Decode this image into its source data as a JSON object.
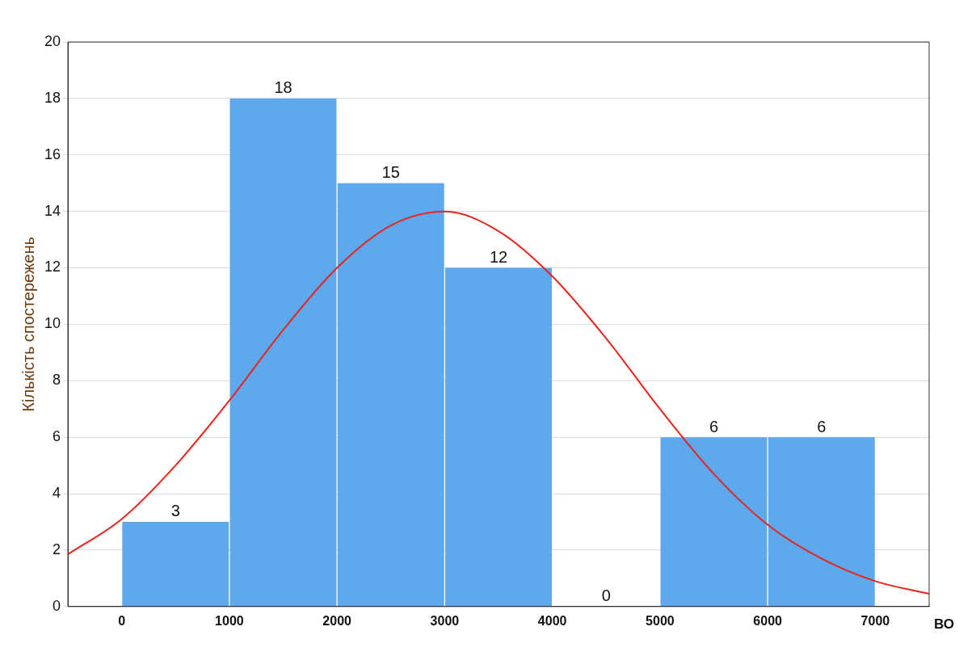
{
  "chart_data": {
    "type": "histogram",
    "xlabel": "ВО",
    "ylabel": "Кількість спостережень",
    "bins": [
      0,
      1000,
      2000,
      3000,
      4000,
      5000,
      6000,
      7000
    ],
    "values": [
      3,
      18,
      15,
      12,
      0,
      6,
      6
    ],
    "color": "#5ea8ee",
    "value_labels": [
      "3",
      "18",
      "15",
      "12",
      "0",
      "6",
      "6"
    ],
    "series": [
      {
        "type": "line",
        "color": "#e8241c",
        "x": [
          -500,
          0,
          500,
          1000,
          1500,
          2000,
          2500,
          3000,
          3500,
          4000,
          4500,
          5000,
          5500,
          6000,
          6500,
          7000,
          7500
        ],
        "values": [
          1.85,
          3.1,
          5,
          7.3,
          9.8,
          12,
          13.5,
          14,
          13.3,
          11.7,
          9.5,
          7,
          4.7,
          2.9,
          1.7,
          0.9,
          0.45
        ]
      }
    ],
    "xlim": [
      -500,
      7500
    ],
    "xticks": [
      0,
      1000,
      2000,
      3000,
      4000,
      5000,
      6000,
      7000
    ],
    "ylim": [
      0,
      20
    ],
    "yticks": [
      0,
      2,
      4,
      6,
      8,
      10,
      12,
      14,
      16,
      18,
      20
    ],
    "grid": "y",
    "legend": false
  }
}
